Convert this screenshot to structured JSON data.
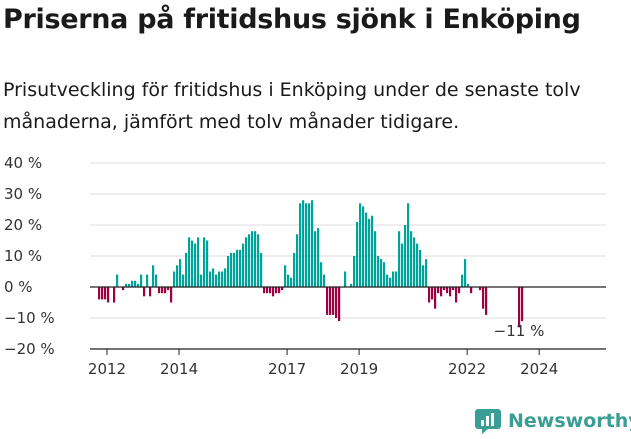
{
  "title": "Priserna på fritidshus sjönk i Enköping",
  "subtitle": "Prisutveckling för fritidshus i Enköping under de senaste tolv månaderna, jämfört med tolv månader tidigare.",
  "brand": "Newsworthy",
  "colors": {
    "positive": "#00a39a",
    "negative": "#9b0040",
    "logo": "#3a9e95"
  },
  "chart_data": {
    "type": "bar",
    "title": "Priserna på fritidshus sjönk i Enköping",
    "xlabel": "",
    "ylabel": "",
    "ylim": [
      -20,
      40
    ],
    "yticks": [
      -20,
      -10,
      0,
      10,
      20,
      30,
      40
    ],
    "ytick_labels": [
      "−20 %",
      "−10 %",
      "0 %",
      "10 %",
      "20 %",
      "30 %",
      "40 %"
    ],
    "xticks": [
      2012,
      2014,
      2017,
      2019,
      2022,
      2024
    ],
    "x_start": 2011.75,
    "x_step": 0.0833,
    "grid": true,
    "legend": "none",
    "last_label": "−11 %",
    "values": [
      -4,
      -4,
      -4,
      -5,
      0,
      -5,
      4,
      0,
      -1,
      1,
      1,
      2,
      2,
      1,
      4,
      -3,
      4,
      -3,
      7,
      4,
      -2,
      -2,
      -2,
      -1,
      -5,
      5,
      7,
      9,
      4,
      11,
      16,
      15,
      14,
      16,
      4,
      16,
      15,
      5,
      6,
      4,
      5,
      5,
      6,
      10,
      11,
      11,
      12,
      12,
      14,
      16,
      17,
      18,
      18,
      17,
      11,
      -2,
      -2,
      -2,
      -3,
      -2,
      -2,
      -1,
      7,
      4,
      3,
      11,
      17,
      27,
      28,
      27,
      27,
      28,
      18,
      19,
      8,
      4,
      -9,
      -9,
      -9,
      -10,
      -11,
      0,
      5,
      0,
      1,
      10,
      21,
      27,
      26,
      24,
      22,
      23,
      18,
      10,
      9,
      8,
      4,
      3,
      5,
      5,
      18,
      14,
      20,
      27,
      18,
      16,
      14,
      12,
      7,
      9,
      -5,
      -4,
      -7,
      -2,
      -3,
      -1,
      -2,
      -3,
      -1,
      -5,
      -2,
      4,
      9,
      1,
      -2,
      0,
      0,
      -1,
      -7,
      -9,
      0,
      0,
      0,
      0,
      0,
      0,
      0,
      0,
      0,
      0,
      -13,
      -11
    ]
  }
}
